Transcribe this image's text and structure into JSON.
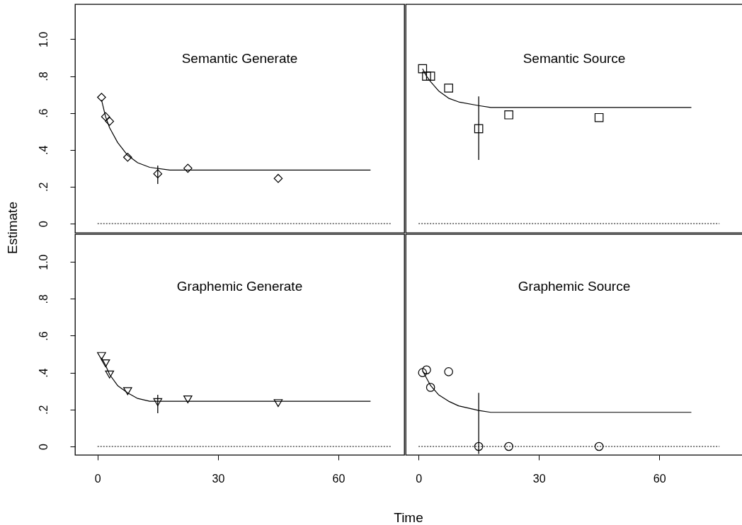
{
  "chart_data": [
    {
      "type": "scatter",
      "title": "Semantic Generate",
      "ylabel": "Estimate",
      "tick_labels": "y",
      "xlim": [
        -5.6,
        76.4
      ],
      "ylim": [
        -0.05,
        1.19
      ],
      "yticks": [
        0,
        {
          "value": 0.2,
          "label": ".2"
        },
        {
          "value": 0.4,
          "label": ".4"
        },
        {
          "value": 0.6,
          "label": ".6"
        },
        {
          "value": 0.8,
          "label": ".8"
        },
        {
          "value": 1.0,
          "label": "1.0"
        }
      ],
      "series": [
        {
          "type": "scatter",
          "marker": "diamond",
          "color": "#000000",
          "x": [
            1,
            2,
            3,
            7.5,
            15,
            22.5,
            45
          ],
          "values": [
            0.685,
            0.58,
            0.555,
            0.36,
            0.27,
            0.3,
            0.245
          ],
          "errors": [
            null,
            null,
            null,
            null,
            [
              0.215,
              0.315
            ],
            null,
            null
          ]
        },
        {
          "type": "line",
          "color": "#000000",
          "line_style": "solid",
          "x": [
            1,
            2,
            3,
            5,
            7.5,
            10,
            13,
            18,
            68
          ],
          "values": [
            0.67,
            0.58,
            0.52,
            0.44,
            0.37,
            0.33,
            0.305,
            0.29,
            0.29
          ]
        },
        {
          "type": "line",
          "color": "#000000",
          "line_style": "dotted",
          "x": [
            0,
            73
          ],
          "values": [
            0,
            0
          ]
        }
      ]
    },
    {
      "type": "scatter",
      "title": "Semantic Source",
      "tick_labels": false,
      "xlim": [
        -3.2,
        80.8
      ],
      "ylim": [
        -0.05,
        1.19
      ],
      "series": [
        {
          "type": "scatter",
          "marker": "square",
          "color": "#000000",
          "x": [
            1,
            2,
            3,
            7.5,
            15,
            22.5,
            45
          ],
          "values": [
            0.84,
            0.8,
            0.8,
            0.735,
            0.515,
            0.59,
            0.575
          ],
          "errors": [
            null,
            null,
            null,
            null,
            [
              0.345,
              0.69
            ],
            null,
            null
          ]
        },
        {
          "type": "line",
          "color": "#000000",
          "line_style": "solid",
          "x": [
            1,
            2,
            3,
            5,
            7.5,
            10,
            15,
            18,
            68
          ],
          "values": [
            0.84,
            0.8,
            0.77,
            0.72,
            0.68,
            0.66,
            0.64,
            0.63,
            0.63
          ]
        },
        {
          "type": "line",
          "color": "#000000",
          "line_style": "dotted",
          "x": [
            0,
            75
          ],
          "values": [
            0,
            0
          ]
        }
      ]
    },
    {
      "type": "scatter",
      "title": "Graphemic Generate",
      "xlabel": "Time",
      "xlim": [
        -5.6,
        76.4
      ],
      "ylim": [
        -0.046,
        1.15
      ],
      "xticks": [
        0,
        30,
        60
      ],
      "yticks": [
        0,
        {
          "value": 0.2,
          "label": ".2"
        },
        {
          "value": 0.4,
          "label": ".4"
        },
        {
          "value": 0.6,
          "label": ".6"
        },
        {
          "value": 0.8,
          "label": ".8"
        },
        {
          "value": 1.0,
          "label": "1.0"
        }
      ],
      "series": [
        {
          "type": "scatter",
          "marker": "triangle",
          "color": "#000000",
          "x": [
            1,
            2,
            3,
            7.5,
            15,
            22.5,
            45
          ],
          "values": [
            0.49,
            0.45,
            0.39,
            0.3,
            0.24,
            0.255,
            0.235
          ],
          "errors": [
            null,
            null,
            null,
            null,
            [
              0.18,
              0.28
            ],
            null,
            null
          ]
        },
        {
          "type": "line",
          "color": "#000000",
          "line_style": "solid",
          "x": [
            1,
            2,
            3,
            5,
            7.5,
            10,
            13,
            68
          ],
          "values": [
            0.48,
            0.44,
            0.39,
            0.33,
            0.29,
            0.26,
            0.245,
            0.245
          ]
        },
        {
          "type": "line",
          "color": "#000000",
          "line_style": "dotted",
          "x": [
            0,
            73
          ],
          "values": [
            0,
            0
          ]
        }
      ]
    },
    {
      "type": "scatter",
      "title": "Graphemic Source",
      "tick_labels": "x",
      "xlim": [
        -3.2,
        80.8
      ],
      "ylim": [
        -0.046,
        1.15
      ],
      "xticks": [
        0,
        30,
        60
      ],
      "series": [
        {
          "type": "scatter",
          "marker": "circle",
          "color": "#000000",
          "x": [
            1,
            2,
            3,
            7.5,
            15,
            22.5,
            45
          ],
          "values": [
            0.4,
            0.415,
            0.32,
            0.405,
            0,
            0,
            0
          ],
          "errors": [
            null,
            null,
            null,
            null,
            [
              -0.04,
              0.29
            ],
            null,
            null
          ]
        },
        {
          "type": "line",
          "color": "#000000",
          "line_style": "solid",
          "x": [
            1,
            2,
            3,
            5,
            7.5,
            10,
            15,
            18,
            68
          ],
          "values": [
            0.41,
            0.37,
            0.33,
            0.28,
            0.245,
            0.22,
            0.195,
            0.185,
            0.185
          ]
        },
        {
          "type": "line",
          "color": "#000000",
          "line_style": "dotted",
          "x": [
            0,
            75
          ],
          "values": [
            0,
            0
          ]
        }
      ]
    }
  ]
}
